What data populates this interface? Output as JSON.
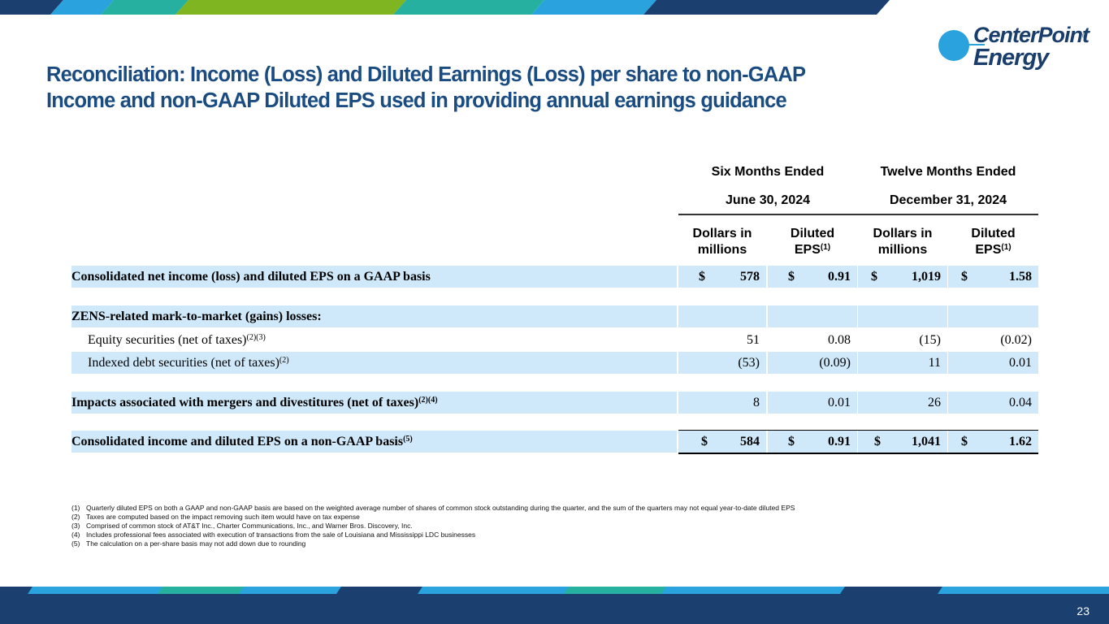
{
  "colors": {
    "title": "#1a4c82",
    "navy": "#1b3f6e",
    "blue": "#2aa2dd",
    "teal": "#25b0a0",
    "green": "#7fb520",
    "shade": "#cfe9fa"
  },
  "logo": {
    "line1": "CenterPoint",
    "line2": "Energy",
    "reg": "®"
  },
  "title": {
    "line1": "Reconciliation: Income (Loss) and Diluted Earnings (Loss) per share to non-GAAP",
    "line2": "Income and non-GAAP Diluted EPS used in providing annual earnings guidance"
  },
  "table": {
    "period1": {
      "line1": "Six Months Ended",
      "line2": "June 30, 2024"
    },
    "period2": {
      "line1": "Twelve Months Ended",
      "line2": "December 31, 2024"
    },
    "col_dollars": {
      "line1": "Dollars in",
      "line2": "millions"
    },
    "col_eps": {
      "line1": "Diluted",
      "line2": "EPS",
      "sup": "(1)"
    },
    "rows": [
      {
        "label": "Consolidated net income (loss) and diluted EPS on a GAAP basis",
        "sup": "",
        "c1": "578",
        "c2": "0.91",
        "c3": "1,019",
        "c4": "1.58",
        "dollar": "$"
      },
      {
        "label": "ZENS-related mark-to-market (gains) losses:",
        "sup": ""
      },
      {
        "label": "Equity securities (net of taxes)",
        "sup": "(2)(3)",
        "c1": "51",
        "c2": "0.08",
        "c3": "(15)",
        "c4": "(0.02)"
      },
      {
        "label": "Indexed debt securities (net of taxes)",
        "sup": "(2)",
        "c1": "(53)",
        "c2": "(0.09)",
        "c3": "11",
        "c4": "0.01"
      },
      {
        "label": "Impacts associated with mergers and divestitures (net of taxes)",
        "sup": "(2)(4)",
        "c1": "8",
        "c2": "0.01",
        "c3": "26",
        "c4": "0.04"
      },
      {
        "label": "Consolidated income and diluted EPS on a non-GAAP basis",
        "sup": "(5)",
        "c1": "584",
        "c2": "0.91",
        "c3": "1,041",
        "c4": "1.62",
        "dollar": "$"
      }
    ]
  },
  "footnotes": [
    {
      "num": "(1)",
      "text": "Quarterly diluted EPS on both a GAAP and non-GAAP basis are based on the weighted average number of shares of common stock outstanding during the quarter, and the sum of the quarters may not equal year-to-date diluted EPS"
    },
    {
      "num": "(2)",
      "text": "Taxes are computed based on the impact removing such item would have on tax expense"
    },
    {
      "num": "(3)",
      "text": "Comprised of common stock of AT&T Inc., Charter Communications, Inc., and Warner Bros. Discovery, Inc."
    },
    {
      "num": "(4)",
      "text": "Includes professional fees associated with execution of transactions from the sale of Louisiana and Mississippi LDC businesses"
    },
    {
      "num": "(5)",
      "text": "The calculation on a per-share basis may not add down due to rounding"
    }
  ],
  "page_number": "23"
}
